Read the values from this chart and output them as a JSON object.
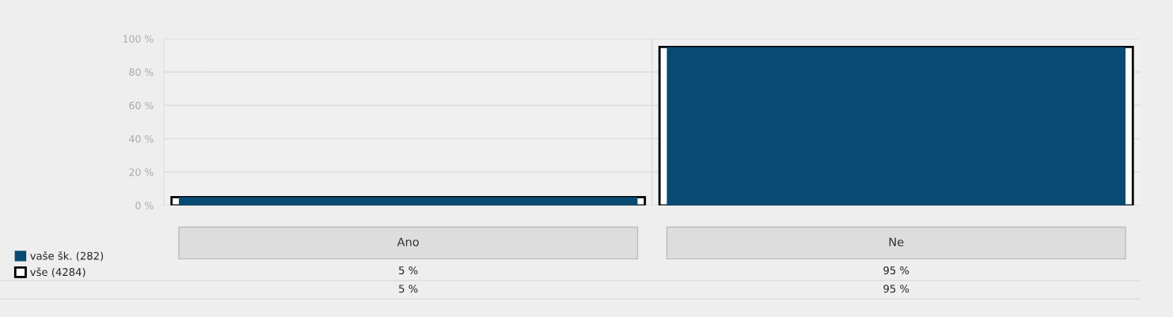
{
  "chart_data": {
    "type": "bar",
    "categories": [
      "Ano",
      "Ne"
    ],
    "series": [
      {
        "name": "vaše šk. (282)",
        "color": "#084a72",
        "values": [
          5,
          95
        ],
        "value_labels": [
          "5 %",
          "95 %"
        ]
      },
      {
        "name": "vše (4284)",
        "color": "#000000",
        "values": [
          5,
          95
        ],
        "value_labels": [
          "5 %",
          "95 %"
        ]
      }
    ],
    "ylim": [
      0,
      100
    ],
    "yticks": [
      {
        "value": 0,
        "label": "0 %"
      },
      {
        "value": 20,
        "label": "20 %"
      },
      {
        "value": 40,
        "label": "40 %"
      },
      {
        "value": 60,
        "label": "60 %"
      },
      {
        "value": 80,
        "label": "80 %"
      },
      {
        "value": 100,
        "label": "100 %"
      }
    ],
    "grid": "y",
    "legend": "bottom left"
  }
}
